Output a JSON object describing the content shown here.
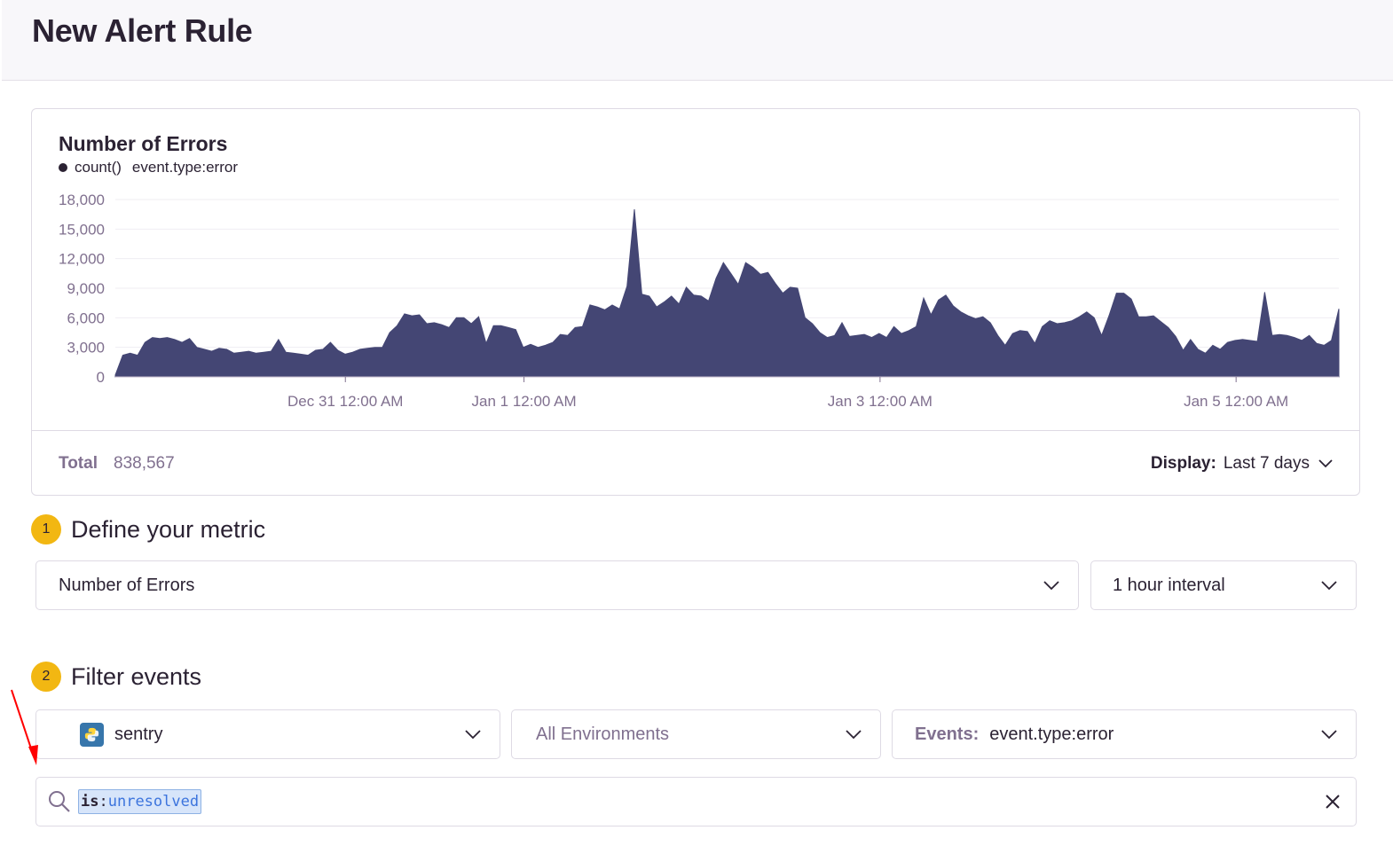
{
  "header": {
    "title": "New Alert Rule"
  },
  "chart_panel": {
    "title": "Number of Errors",
    "legend": {
      "aggregate": "count()",
      "query": "event.type:error"
    },
    "footer": {
      "total_label": "Total",
      "total_value": "838,567",
      "display_label": "Display:",
      "display_value": "Last 7 days"
    }
  },
  "chart_data": {
    "type": "area",
    "title": "Number of Errors",
    "series": [
      {
        "name": "count()",
        "values": [
          200,
          2200,
          2400,
          2200,
          3500,
          4000,
          3900,
          4000,
          3800,
          3500,
          3900,
          3000,
          2800,
          2600,
          2900,
          2800,
          2400,
          2500,
          2600,
          2400,
          2500,
          2600,
          3800,
          2500,
          2400,
          2300,
          2200,
          2700,
          2800,
          3500,
          2700,
          2300,
          2500,
          2800,
          2900,
          3000,
          3000,
          4500,
          5200,
          6400,
          6200,
          6300,
          5400,
          5500,
          5300,
          5000,
          6000,
          6000,
          5400,
          6100,
          3400,
          5200,
          5200,
          5000,
          4800,
          3000,
          3300,
          3000,
          3200,
          3500,
          4300,
          4200,
          5000,
          5100,
          7300,
          7100,
          6800,
          7300,
          6900,
          9200,
          17000,
          8400,
          8200,
          7100,
          7600,
          8200,
          7400,
          9100,
          8300,
          8200,
          7700,
          10000,
          11600,
          10500,
          9400,
          11600,
          11100,
          10400,
          10600,
          9500,
          8500,
          9100,
          9000,
          6000,
          5400,
          4500,
          4000,
          4200,
          5500,
          4100,
          4200,
          4300,
          4000,
          4400,
          4000,
          5100,
          4400,
          4700,
          5100,
          8000,
          6300,
          7800,
          8300,
          7200,
          6600,
          6200,
          5900,
          6100,
          5500,
          4200,
          3200,
          4400,
          4700,
          4600,
          3400,
          5100,
          5700,
          5400,
          5500,
          5700,
          6100,
          6600,
          6000,
          4200,
          6200,
          8500,
          8500,
          7900,
          6100,
          6100,
          6200,
          5600,
          5000,
          4100,
          2700,
          3800,
          2800,
          2400,
          3200,
          2800,
          3500,
          3700,
          3800,
          3700,
          3600,
          8600,
          4200,
          4300,
          4200,
          4000,
          3700,
          4200,
          3400,
          3200,
          3700,
          6900
        ]
      }
    ],
    "ylim": [
      0,
      18000
    ],
    "yticks": [
      "18,000",
      "15,000",
      "12,000",
      "9,000",
      "6,000",
      "3,000",
      "0"
    ],
    "xticks": [
      "Dec 31 12:00 AM",
      "Jan 1 12:00 AM",
      "Jan 3 12:00 AM",
      "Jan 5 12:00 AM"
    ],
    "legend": [
      "count()  event.type:error"
    ],
    "grid": true,
    "color": "#444674"
  },
  "step1": {
    "number": "1",
    "title": "Define your metric",
    "metric_value": "Number of Errors",
    "interval_value": "1 hour interval"
  },
  "step2": {
    "number": "2",
    "title": "Filter events",
    "project_value": "sentry",
    "environment_value": "All Environments",
    "events_label": "Events:",
    "events_value": "event.type:error",
    "search": {
      "key": "is",
      "colon": ":",
      "value": "unresolved"
    }
  },
  "colors": {
    "accent": "#f2b712",
    "chart_fill": "#444674",
    "annotation": "#ff0000"
  },
  "icons": [
    "chevron-down-icon",
    "search-icon",
    "close-icon",
    "python-icon",
    "legend-dot-icon"
  ]
}
